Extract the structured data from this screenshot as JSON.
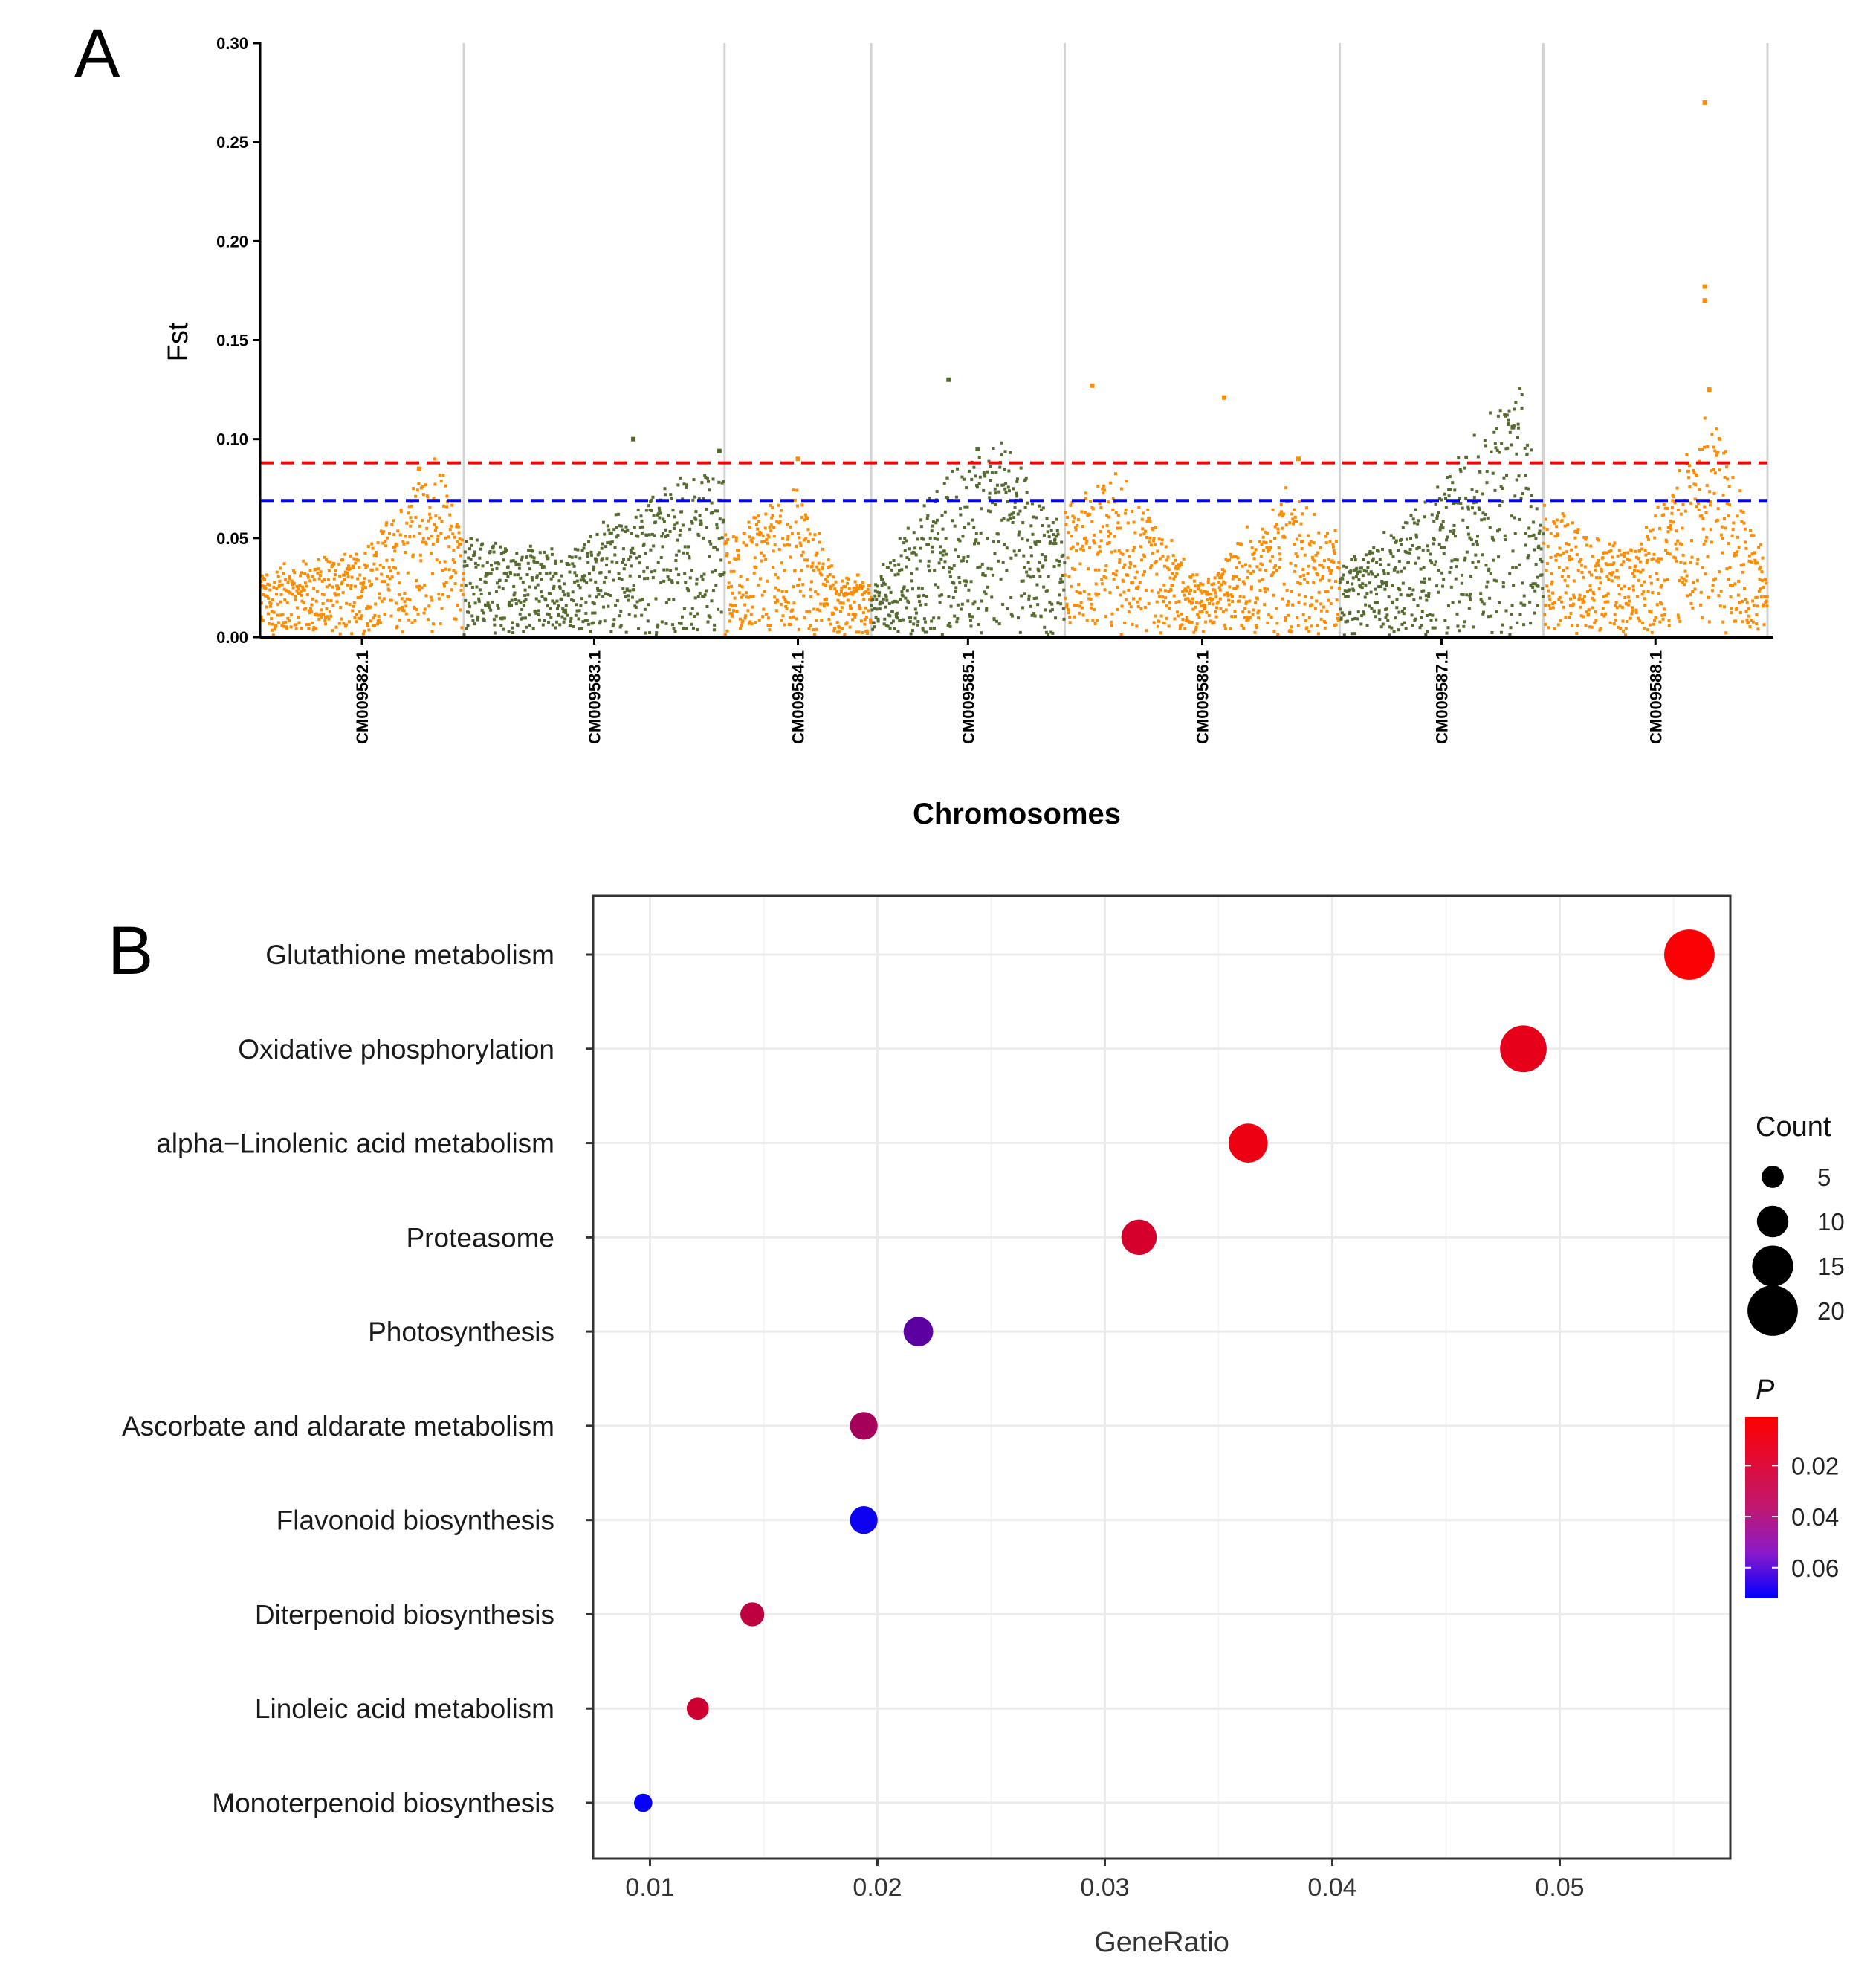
{
  "panels": {
    "a_label": "A",
    "b_label": "B"
  },
  "colors": {
    "orange": "#FF8C00",
    "green": "#556B2F",
    "threshold_red": "#FF0000",
    "threshold_blue": "#0000FF"
  },
  "chart_data": [
    {
      "type": "scatter",
      "panel": "A",
      "title": "",
      "xlabel": "Chromosomes",
      "ylabel": "Fst",
      "ylim": [
        0,
        0.3
      ],
      "yticks": [
        "0.00",
        "0.05",
        "0.10",
        "0.15",
        "0.20",
        "0.25",
        "0.30"
      ],
      "ytick_values": [
        0,
        0.05,
        0.1,
        0.15,
        0.2,
        0.25,
        0.3
      ],
      "thresholds": [
        {
          "name": "upper",
          "value": 0.088,
          "color": "#FF0000"
        },
        {
          "name": "lower",
          "value": 0.069,
          "color": "#0000FF"
        }
      ],
      "chromosomes": [
        {
          "name": "CM009582.1",
          "color": "orange",
          "start": 0,
          "end": 1.0,
          "profile": [
            [
              0,
              0.018
            ],
            [
              0.5,
              0.025
            ],
            [
              0.7,
              0.04
            ],
            [
              0.85,
              0.055
            ],
            [
              1.0,
              0.035
            ]
          ],
          "peaks": [
            [
              0.78,
              0.085
            ]
          ]
        },
        {
          "name": "CM009583.1",
          "color": "green",
          "start": 1.0,
          "end": 2.28,
          "profile": [
            [
              0,
              0.03
            ],
            [
              0.4,
              0.025
            ],
            [
              0.75,
              0.045
            ],
            [
              1.0,
              0.055
            ]
          ],
          "peaks": [
            [
              0.65,
              0.1
            ],
            [
              0.98,
              0.094
            ]
          ]
        },
        {
          "name": "CM009584.1",
          "color": "orange",
          "start": 2.28,
          "end": 3.0,
          "profile": [
            [
              0,
              0.03
            ],
            [
              0.5,
              0.045
            ],
            [
              0.75,
              0.02
            ],
            [
              1.0,
              0.015
            ]
          ],
          "peaks": [
            [
              0.5,
              0.09
            ]
          ]
        },
        {
          "name": "CM009585.1",
          "color": "green",
          "start": 3.0,
          "end": 3.95,
          "profile": [
            [
              0,
              0.015
            ],
            [
              0.4,
              0.05
            ],
            [
              0.7,
              0.06
            ],
            [
              1.0,
              0.03
            ]
          ],
          "peaks": [
            [
              0.4,
              0.13
            ],
            [
              0.55,
              0.095
            ]
          ]
        },
        {
          "name": "CM009586.1",
          "color": "orange",
          "start": 3.95,
          "end": 5.3,
          "profile": [
            [
              0,
              0.04
            ],
            [
              0.2,
              0.05
            ],
            [
              0.5,
              0.015
            ],
            [
              0.8,
              0.045
            ],
            [
              1.0,
              0.03
            ]
          ],
          "peaks": [
            [
              0.1,
              0.127
            ],
            [
              0.58,
              0.121
            ],
            [
              0.85,
              0.09
            ]
          ]
        },
        {
          "name": "CM009587.1",
          "color": "green",
          "start": 5.3,
          "end": 6.3,
          "profile": [
            [
              0,
              0.02
            ],
            [
              0.4,
              0.04
            ],
            [
              0.75,
              0.07
            ],
            [
              0.9,
              0.08
            ],
            [
              1.0,
              0.03
            ]
          ],
          "peaks": [
            [
              0.85,
              0.106
            ]
          ]
        },
        {
          "name": "CM009588.1",
          "color": "orange",
          "start": 6.3,
          "end": 7.4,
          "profile": [
            [
              0,
              0.04
            ],
            [
              0.4,
              0.025
            ],
            [
              0.75,
              0.07
            ],
            [
              1.0,
              0.02
            ]
          ],
          "peaks": [
            [
              0.72,
              0.27
            ],
            [
              0.72,
              0.177
            ],
            [
              0.72,
              0.17
            ],
            [
              0.74,
              0.125
            ]
          ]
        }
      ]
    },
    {
      "type": "scatter",
      "panel": "B",
      "title": "",
      "xlabel": "GeneRatio",
      "ylabel": "",
      "xlim": [
        0.0075,
        0.0575
      ],
      "xticks": [
        "0.01",
        "0.02",
        "0.03",
        "0.04",
        "0.05"
      ],
      "xtick_values": [
        0.01,
        0.02,
        0.03,
        0.04,
        0.05
      ],
      "terms": [
        {
          "term": "Glutathione metabolism",
          "gene_ratio": 0.0557,
          "count": 20,
          "p": 0.002
        },
        {
          "term": "Oxidative phosphorylation",
          "gene_ratio": 0.0484,
          "count": 18,
          "p": 0.008
        },
        {
          "term": "alpha−Linolenic acid metabolism",
          "gene_ratio": 0.0363,
          "count": 14,
          "p": 0.006
        },
        {
          "term": "Proteasome",
          "gene_ratio": 0.0315,
          "count": 12,
          "p": 0.013
        },
        {
          "term": "Photosynthesis",
          "gene_ratio": 0.0218,
          "count": 9,
          "p": 0.046
        },
        {
          "term": "Ascorbate and aldarate metabolism",
          "gene_ratio": 0.0194,
          "count": 8,
          "p": 0.026
        },
        {
          "term": "Flavonoid biosynthesis",
          "gene_ratio": 0.0194,
          "count": 8,
          "p": 0.068
        },
        {
          "term": "Diterpenoid biosynthesis",
          "gene_ratio": 0.0145,
          "count": 6,
          "p": 0.019
        },
        {
          "term": "Linoleic acid metabolism",
          "gene_ratio": 0.0121,
          "count": 5,
          "p": 0.015
        },
        {
          "term": "Monoterpenoid biosynthesis",
          "gene_ratio": 0.0097,
          "count": 3,
          "p": 0.07
        }
      ],
      "legend": {
        "size_title": "Count",
        "size_labels": [
          "5",
          "10",
          "15",
          "20"
        ],
        "size_values": [
          5,
          10,
          15,
          20
        ],
        "color_title": "P",
        "color_labels": [
          "0.02",
          "0.04",
          "0.06"
        ],
        "color_values": [
          0.02,
          0.04,
          0.06
        ],
        "color_range": [
          0.001,
          0.072
        ],
        "color_low": "#FF0000",
        "color_high": "#0000FF"
      }
    }
  ]
}
